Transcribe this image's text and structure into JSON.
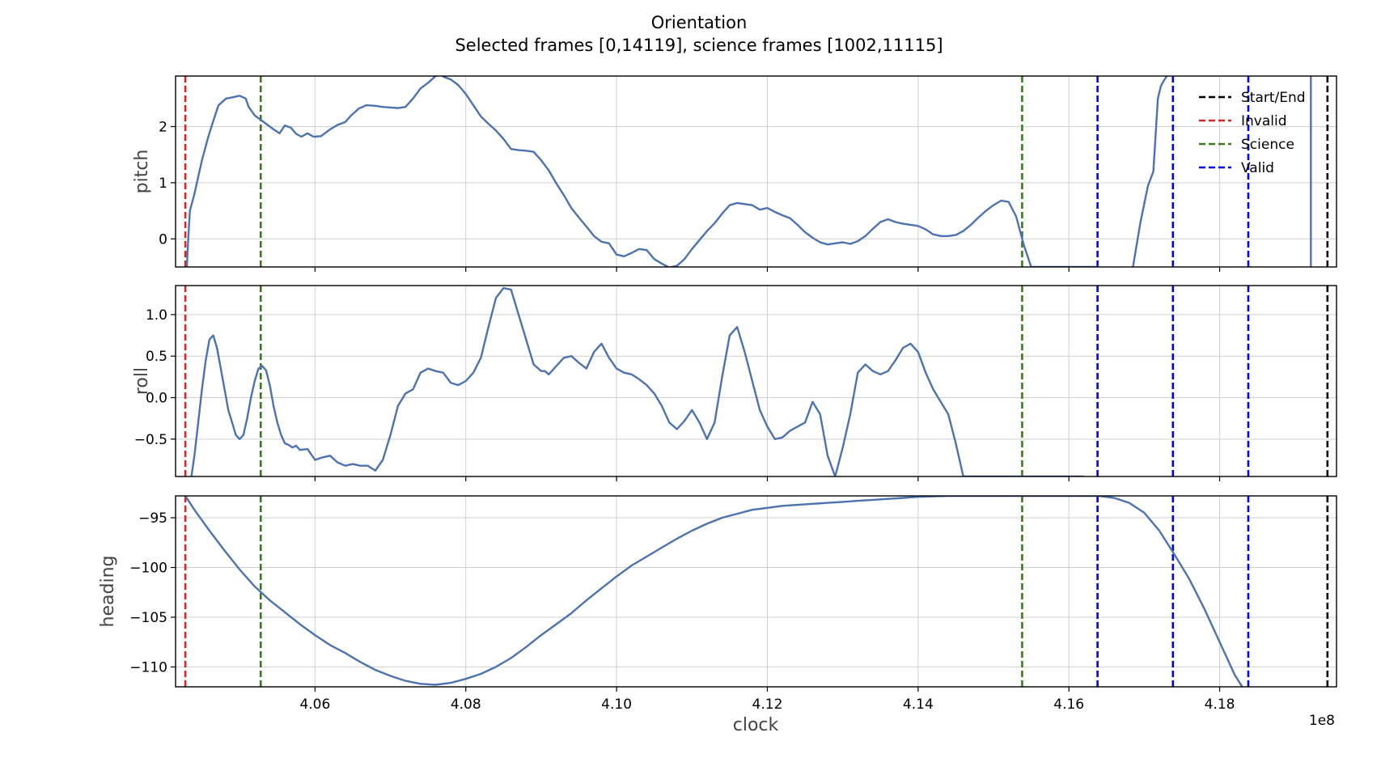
{
  "chart_data": {
    "type": "line",
    "title": "Orientation",
    "subtitle": "Selected frames [0,14119], science frames [1002,11115]",
    "xlabel": "clock",
    "x_offset_label": "1e8",
    "x_scale": 100000000,
    "xlim": [
      4.0415,
      4.1955
    ],
    "x_ticks": [
      "4.06",
      "4.08",
      "4.10",
      "4.12",
      "4.14",
      "4.16",
      "4.18"
    ],
    "x_tick_values": [
      4.06,
      4.08,
      4.1,
      4.12,
      4.14,
      4.16,
      4.18
    ],
    "grid": true,
    "line_color": "#4c72b0",
    "vlines": [
      {
        "label": "Start/End",
        "color": "#000000",
        "x": [
          4.0428,
          4.1943
        ]
      },
      {
        "label": "Invalid",
        "color": "#d62728",
        "x": [
          4.0428
        ]
      },
      {
        "label": "Science",
        "color": "#3c7a1f",
        "x": [
          4.0528,
          4.1538
        ]
      },
      {
        "label": "Valid",
        "color": "#0000ee",
        "x": [
          4.1638,
          4.1738,
          4.1838
        ]
      }
    ],
    "legend": {
      "placement": "top-right",
      "entries": [
        "Start/End",
        "Invalid",
        "Science",
        "Valid"
      ]
    },
    "panels": [
      {
        "name": "pitch",
        "ylabel": "pitch",
        "ylim": [
          -0.5,
          2.9
        ],
        "y_ticks": [
          "0",
          "1",
          "2"
        ],
        "y_tick_values": [
          0,
          1,
          2
        ],
        "series": [
          {
            "x": [
              4.043,
              4.0431,
              4.0434,
              4.044,
              4.045,
              4.0458,
              4.0465,
              4.0472,
              4.0482,
              4.049,
              4.05,
              4.0508,
              4.0512,
              4.052,
              4.0528,
              4.0535,
              4.0545,
              4.0553,
              4.056,
              4.0568,
              4.0575,
              4.0582,
              4.059,
              4.0598,
              4.0608,
              4.062,
              4.063,
              4.064,
              4.0648,
              4.0658,
              4.0668,
              4.068,
              4.069,
              4.07,
              4.071,
              4.072,
              4.073,
              4.074,
              4.075,
              4.076,
              4.0766,
              4.0772,
              4.078,
              4.079,
              4.08,
              4.081,
              4.082,
              4.083,
              4.084,
              4.085,
              4.086,
              4.087,
              4.088,
              4.089,
              4.09,
              4.091,
              4.092,
              4.093,
              4.094,
              4.095,
              4.096,
              4.097,
              4.098,
              4.099,
              4.1,
              4.101,
              4.102,
              4.103,
              4.104,
              4.105,
              4.106,
              4.107,
              4.108,
              4.109,
              4.11,
              4.111,
              4.112,
              4.113,
              4.114,
              4.115,
              4.116,
              4.117,
              4.118,
              4.119,
              4.12,
              4.121,
              4.122,
              4.123,
              4.124,
              4.125,
              4.126,
              4.127,
              4.128,
              4.129,
              4.13,
              4.131,
              4.132,
              4.133,
              4.134,
              4.135,
              4.136,
              4.137,
              4.138,
              4.139,
              4.14,
              4.141,
              4.142,
              4.143,
              4.144,
              4.145,
              4.146,
              4.147,
              4.148,
              4.149,
              4.15,
              4.151,
              4.152,
              4.153,
              4.154,
              4.155,
              4.156,
              4.157,
              4.158,
              4.159,
              4.16,
              4.161,
              4.162,
              4.163,
              4.164
            ],
            "y": [
              -0.5,
              -0.2,
              0.5,
              0.8,
              1.4,
              1.8,
              2.1,
              2.38,
              2.5,
              2.52,
              2.55,
              2.5,
              2.35,
              2.2,
              2.12,
              2.05,
              1.95,
              1.88,
              2.02,
              1.98,
              1.87,
              1.82,
              1.88,
              1.82,
              1.83,
              1.95,
              2.03,
              2.08,
              2.2,
              2.32,
              2.38,
              2.37,
              2.35,
              2.34,
              2.33,
              2.35,
              2.5,
              2.68,
              2.78,
              2.9,
              2.92,
              2.88,
              2.84,
              2.74,
              2.58,
              2.38,
              2.18,
              2.05,
              1.93,
              1.78,
              1.6,
              1.58,
              1.57,
              1.55,
              1.4,
              1.22,
              0.99,
              0.78,
              0.55,
              0.38,
              0.22,
              0.05,
              -0.05,
              -0.08,
              -0.28,
              -0.31,
              -0.25,
              -0.18,
              -0.2,
              -0.36,
              -0.44,
              -0.51,
              -0.48,
              -0.36,
              -0.18,
              -0.02,
              0.14,
              0.28,
              0.45,
              0.6,
              0.64,
              0.62,
              0.6,
              0.52,
              0.55,
              0.48,
              0.42,
              0.37,
              0.25,
              0.12,
              0.02,
              -0.06,
              -0.1,
              -0.08,
              -0.06,
              -0.09,
              -0.04,
              0.05,
              0.18,
              0.3,
              0.35,
              0.3,
              0.27,
              0.25,
              0.23,
              0.17,
              0.08,
              0.05,
              0.05,
              0.07,
              0.14,
              0.25,
              0.38,
              0.5,
              0.6,
              0.68,
              0.66,
              0.4,
              -0.1,
              -0.5,
              -0.5,
              -0.5,
              -0.5,
              -0.5,
              -0.5,
              -0.5,
              -0.5,
              -0.5,
              -0.5
            ]
          },
          {
            "x": [
              4.1685,
              4.1695,
              4.1705,
              4.1712,
              4.1718,
              4.1722,
              4.1726,
              4.173
            ],
            "y": [
              -0.5,
              0.3,
              0.95,
              1.2,
              2.5,
              2.72,
              2.82,
              2.9
            ]
          },
          {
            "x": [
              4.1921,
              4.1921
            ],
            "y": [
              -0.5,
              2.9
            ]
          }
        ]
      },
      {
        "name": "roll",
        "ylabel": "roll",
        "ylim": [
          -0.95,
          1.35
        ],
        "y_ticks": [
          "−0.5",
          "0.0",
          "0.5",
          "1.0"
        ],
        "y_tick_values": [
          -0.5,
          0.0,
          0.5,
          1.0
        ],
        "series": [
          {
            "x": [
              4.0436,
              4.044,
              4.0445,
              4.045,
              4.0455,
              4.046,
              4.0465,
              4.047,
              4.0475,
              4.048,
              4.0485,
              4.049,
              4.0495,
              4.05,
              4.0505,
              4.051,
              4.0515,
              4.052,
              4.0525,
              4.053,
              4.0535,
              4.054,
              4.0545,
              4.055,
              4.0555,
              4.056,
              4.0565,
              4.057,
              4.0575,
              4.058,
              4.059,
              4.06,
              4.061,
              4.062,
              4.063,
              4.064,
              4.065,
              4.066,
              4.067,
              4.068,
              4.069,
              4.07,
              4.071,
              4.072,
              4.073,
              4.074,
              4.075,
              4.076,
              4.077,
              4.078,
              4.079,
              4.08,
              4.081,
              4.082,
              4.083,
              4.084,
              4.085,
              4.086,
              4.087,
              4.088,
              4.089,
              4.09,
              4.0905,
              4.091,
              4.092,
              4.093,
              4.094,
              4.095,
              4.096,
              4.097,
              4.098,
              4.099,
              4.1,
              4.101,
              4.102,
              4.103,
              4.104,
              4.105,
              4.106,
              4.107,
              4.108,
              4.109,
              4.11,
              4.111,
              4.112,
              4.113,
              4.114,
              4.115,
              4.116,
              4.117,
              4.118,
              4.119,
              4.12,
              4.121,
              4.122,
              4.123,
              4.124,
              4.125,
              4.126,
              4.127,
              4.128,
              4.129,
              4.13,
              4.131,
              4.132,
              4.133,
              4.134,
              4.135,
              4.136,
              4.137,
              4.138,
              4.139,
              4.14,
              4.141,
              4.142,
              4.143,
              4.144,
              4.145,
              4.146,
              4.147,
              4.148,
              4.149,
              4.15,
              4.151,
              4.152,
              4.153,
              4.154,
              4.155,
              4.156,
              4.157,
              4.158,
              4.159,
              4.16,
              4.161,
              4.162
            ],
            "y": [
              -0.95,
              -0.7,
              -0.3,
              0.1,
              0.45,
              0.7,
              0.75,
              0.6,
              0.35,
              0.1,
              -0.15,
              -0.3,
              -0.45,
              -0.5,
              -0.45,
              -0.25,
              0.0,
              0.2,
              0.35,
              0.38,
              0.33,
              0.15,
              -0.1,
              -0.3,
              -0.45,
              -0.55,
              -0.57,
              -0.6,
              -0.58,
              -0.63,
              -0.62,
              -0.75,
              -0.72,
              -0.7,
              -0.78,
              -0.82,
              -0.8,
              -0.82,
              -0.82,
              -0.88,
              -0.75,
              -0.45,
              -0.1,
              0.05,
              0.1,
              0.3,
              0.35,
              0.32,
              0.3,
              0.18,
              0.15,
              0.2,
              0.3,
              0.48,
              0.85,
              1.2,
              1.32,
              1.3,
              1.0,
              0.7,
              0.4,
              0.32,
              0.32,
              0.28,
              0.38,
              0.48,
              0.5,
              0.42,
              0.35,
              0.55,
              0.65,
              0.48,
              0.35,
              0.3,
              0.28,
              0.22,
              0.15,
              0.05,
              -0.1,
              -0.3,
              -0.38,
              -0.28,
              -0.15,
              -0.3,
              -0.5,
              -0.3,
              0.25,
              0.75,
              0.85,
              0.55,
              0.2,
              -0.15,
              -0.35,
              -0.5,
              -0.48,
              -0.4,
              -0.35,
              -0.3,
              -0.05,
              -0.2,
              -0.7,
              -0.95,
              -0.6,
              -0.2,
              0.3,
              0.4,
              0.32,
              0.28,
              0.32,
              0.45,
              0.6,
              0.65,
              0.55,
              0.3,
              0.1,
              -0.05,
              -0.2,
              -0.55,
              -0.95,
              -0.95,
              -0.95,
              -0.95,
              -0.95,
              -0.95,
              -0.95,
              -0.95,
              -0.95,
              -0.95,
              -0.95,
              -0.95,
              -0.95,
              -0.95,
              -0.95,
              -0.95,
              -0.95
            ]
          }
        ]
      },
      {
        "name": "heading",
        "ylabel": "heading",
        "ylim": [
          -112.0,
          -92.8
        ],
        "y_ticks": [
          "−110",
          "−105",
          "−100",
          "−95"
        ],
        "y_tick_values": [
          -110,
          -105,
          -100,
          -95
        ],
        "series": [
          {
            "x": [
              4.0428,
              4.044,
              4.046,
              4.048,
              4.05,
              4.052,
              4.054,
              4.056,
              4.058,
              4.06,
              4.062,
              4.064,
              4.066,
              4.068,
              4.07,
              4.072,
              4.074,
              4.076,
              4.078,
              4.08,
              4.082,
              4.084,
              4.086,
              4.088,
              4.09,
              4.092,
              4.094,
              4.096,
              4.098,
              4.1,
              4.102,
              4.104,
              4.106,
              4.108,
              4.11,
              4.112,
              4.114,
              4.116,
              4.118,
              4.12,
              4.122,
              4.124,
              4.126,
              4.128,
              4.13,
              4.132,
              4.134,
              4.136,
              4.138,
              4.14,
              4.142,
              4.144,
              4.146,
              4.148,
              4.15,
              4.152,
              4.154,
              4.156,
              4.158,
              4.16,
              4.162,
              4.164,
              4.166,
              4.168,
              4.17,
              4.172,
              4.174,
              4.176,
              4.178,
              4.18,
              4.182,
              4.183
            ],
            "y": [
              -92.8,
              -94.2,
              -96.3,
              -98.3,
              -100.2,
              -101.9,
              -103.3,
              -104.5,
              -105.7,
              -106.8,
              -107.8,
              -108.6,
              -109.5,
              -110.3,
              -110.9,
              -111.4,
              -111.7,
              -111.8,
              -111.6,
              -111.2,
              -110.7,
              -110.0,
              -109.1,
              -108.0,
              -106.8,
              -105.7,
              -104.6,
              -103.3,
              -102.1,
              -100.9,
              -99.8,
              -98.9,
              -98.0,
              -97.1,
              -96.3,
              -95.6,
              -95.0,
              -94.6,
              -94.2,
              -94.0,
              -93.8,
              -93.7,
              -93.6,
              -93.5,
              -93.4,
              -93.3,
              -93.2,
              -93.1,
              -93.0,
              -92.9,
              -92.85,
              -92.8,
              -92.8,
              -92.8,
              -92.8,
              -92.8,
              -92.8,
              -92.8,
              -92.8,
              -92.8,
              -92.8,
              -92.8,
              -93.0,
              -93.5,
              -94.5,
              -96.3,
              -98.7,
              -101.2,
              -104.2,
              -107.5,
              -110.8,
              -112.0
            ]
          }
        ]
      }
    ]
  }
}
